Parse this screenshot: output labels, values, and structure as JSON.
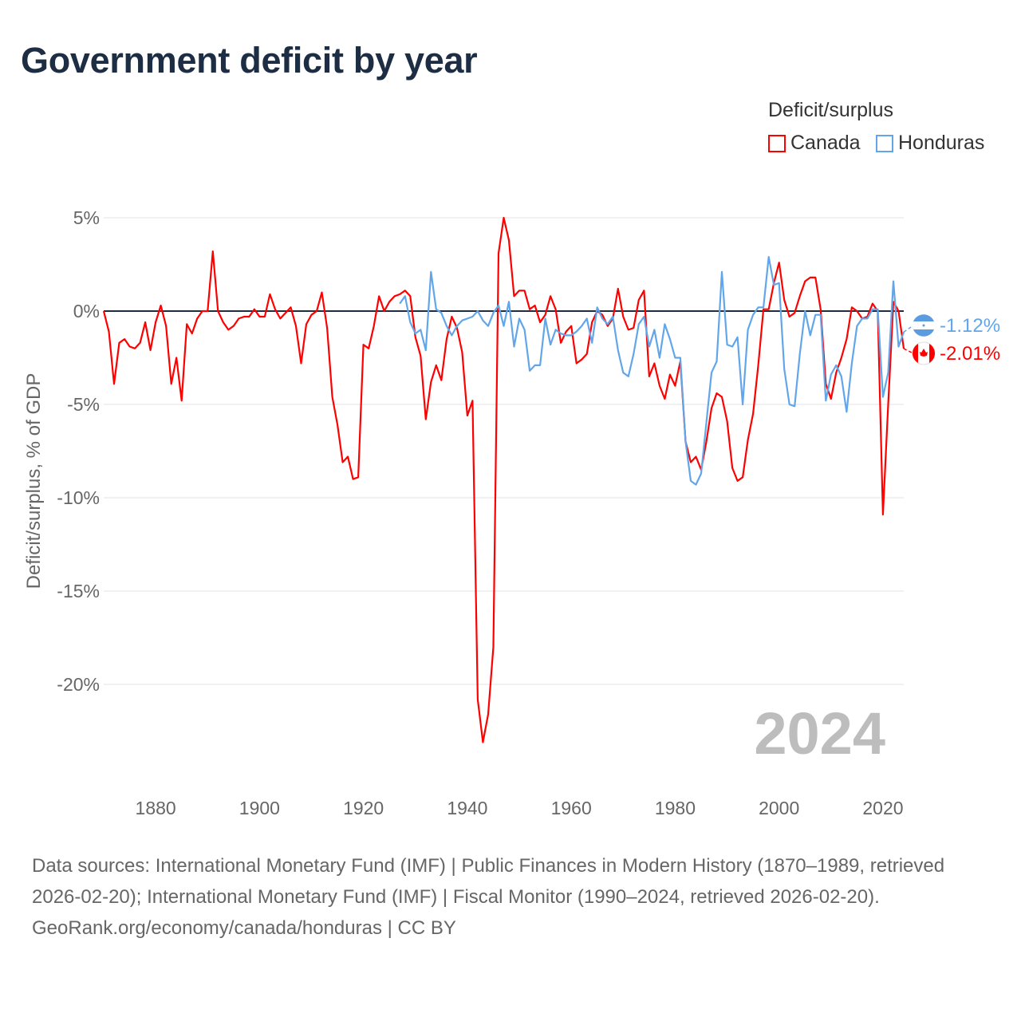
{
  "chart_data": {
    "type": "line",
    "title": "Government deficit by year",
    "xlabel": "",
    "ylabel": "Deficit/surplus, % of GDP",
    "legend_title": "Deficit/surplus",
    "legend_position": "top-right",
    "year_watermark": "2024",
    "xlim": [
      1870,
      2024
    ],
    "ylim": [
      -23.5,
      5
    ],
    "x_ticks": [
      1880,
      1900,
      1920,
      1940,
      1960,
      1980,
      2000,
      2020
    ],
    "x_tick_labels": [
      "1880",
      "1900",
      "1920",
      "1940",
      "1960",
      "1980",
      "2000",
      "2020"
    ],
    "y_ticks": [
      5,
      0,
      -5,
      -10,
      -15,
      -20
    ],
    "y_tick_labels": [
      "5%",
      "0%",
      "-5%",
      "-10%",
      "-15%",
      "-20%"
    ],
    "grid": true,
    "series": [
      {
        "name": "Canada",
        "color": "#ff0000",
        "start_year": 1870,
        "end_label": "-2.01%",
        "flag": "canada-flag",
        "values": [
          0,
          -1.1,
          -3.9,
          -1.7,
          -1.5,
          -1.9,
          -2.0,
          -1.7,
          -0.6,
          -2.1,
          -0.6,
          0.3,
          -0.8,
          -3.9,
          -2.5,
          -4.8,
          -0.7,
          -1.2,
          -0.4,
          0,
          0,
          3.2,
          0,
          -0.6,
          -1.0,
          -0.8,
          -0.4,
          -0.3,
          -0.3,
          0.1,
          -0.3,
          -0.3,
          0.9,
          0.1,
          -0.4,
          -0.1,
          0.2,
          -0.8,
          -2.8,
          -0.7,
          -0.2,
          0,
          1.0,
          -0.9,
          -4.6,
          -6.1,
          -8.1,
          -7.8,
          -9.0,
          -8.9,
          -1.8,
          -2.0,
          -0.8,
          0.8,
          0,
          0.5,
          0.8,
          0.9,
          1.1,
          0.8,
          -1.4,
          -2.4,
          -5.8,
          -3.8,
          -2.9,
          -3.7,
          -1.5,
          -0.3,
          -0.9,
          -2.2,
          -5.6,
          -4.8,
          -20.8,
          -23.1,
          -21.6,
          -18.0,
          3.1,
          5.0,
          3.8,
          0.8,
          1.1,
          1.1,
          0.1,
          0.3,
          -0.6,
          -0.2,
          0.8,
          0.1,
          -1.7,
          -1.1,
          -0.8,
          -2.8,
          -2.6,
          -2.3,
          -0.6,
          0,
          -0.2,
          -0.8,
          -0.4,
          1.2,
          -0.3,
          -1.0,
          -0.9,
          0.6,
          1.1,
          -3.5,
          -2.8,
          -4.0,
          -4.7,
          -3.4,
          -4.0,
          -2.7,
          -7.0,
          -8.1,
          -7.8,
          -8.5,
          -7.0,
          -5.2,
          -4.4,
          -4.6,
          -5.9,
          -8.4,
          -9.1,
          -8.9,
          -6.9,
          -5.5,
          -2.9,
          0.1,
          0.1,
          1.5,
          2.6,
          0.6,
          -0.3,
          -0.1,
          0.8,
          1.6,
          1.8,
          1.8,
          0.1,
          -3.9,
          -4.7,
          -3.3,
          -2.5,
          -1.5,
          0.2,
          0,
          -0.4,
          -0.3,
          0.4,
          0,
          -10.9,
          -5.0,
          0.5,
          0,
          -2.01
        ]
      },
      {
        "name": "Honduras",
        "color": "#62a6ea",
        "start_year": 1927,
        "end_label": "-1.12%",
        "flag": "honduras-flag",
        "values": [
          0.4,
          0.8,
          -0.6,
          -1.2,
          -1.0,
          -2.1,
          2.1,
          0.1,
          -0.1,
          -0.8,
          -1.3,
          -0.8,
          -0.5,
          -0.4,
          -0.3,
          0,
          -0.5,
          -0.8,
          -0.1,
          0.3,
          -0.8,
          0.5,
          -1.9,
          -0.4,
          -1.0,
          -3.2,
          -2.9,
          -2.9,
          -0.4,
          -1.8,
          -1.0,
          -1.2,
          -1.3,
          -1.3,
          -1.1,
          -0.8,
          -0.4,
          -1.7,
          0.2,
          -0.4,
          -0.7,
          -0.3,
          -2.1,
          -3.3,
          -3.5,
          -2.3,
          -0.7,
          -0.3,
          -1.9,
          -1.0,
          -2.5,
          -0.7,
          -1.5,
          -2.5,
          -2.5,
          -7.0,
          -9.1,
          -9.3,
          -8.7,
          -6.0,
          -3.3,
          -2.7,
          2.1,
          -1.8,
          -1.9,
          -1.4,
          -5.0,
          -1.0,
          -0.2,
          0.2,
          0.2,
          2.9,
          1.4,
          1.5,
          -3.1,
          -5.0,
          -5.1,
          -2.3,
          0,
          -1.3,
          -0.2,
          -0.2,
          -4.8,
          -3.4,
          -2.9,
          -3.5,
          -5.4,
          -2.8,
          -0.8,
          -0.4,
          -0.4,
          0.1,
          0.1,
          -4.6,
          -3.3,
          1.6,
          -1.9,
          -1.12
        ]
      }
    ]
  },
  "footer": {
    "sources": "Data sources: International Monetary Fund (IMF) | Public Finances in Modern History (1870–1989, retrieved 2026-02-20); International Monetary Fund (IMF) | Fiscal Monitor (1990–2024, retrieved 2026-02-20).",
    "credit": "GeoRank.org/economy/canada/honduras | CC BY"
  }
}
